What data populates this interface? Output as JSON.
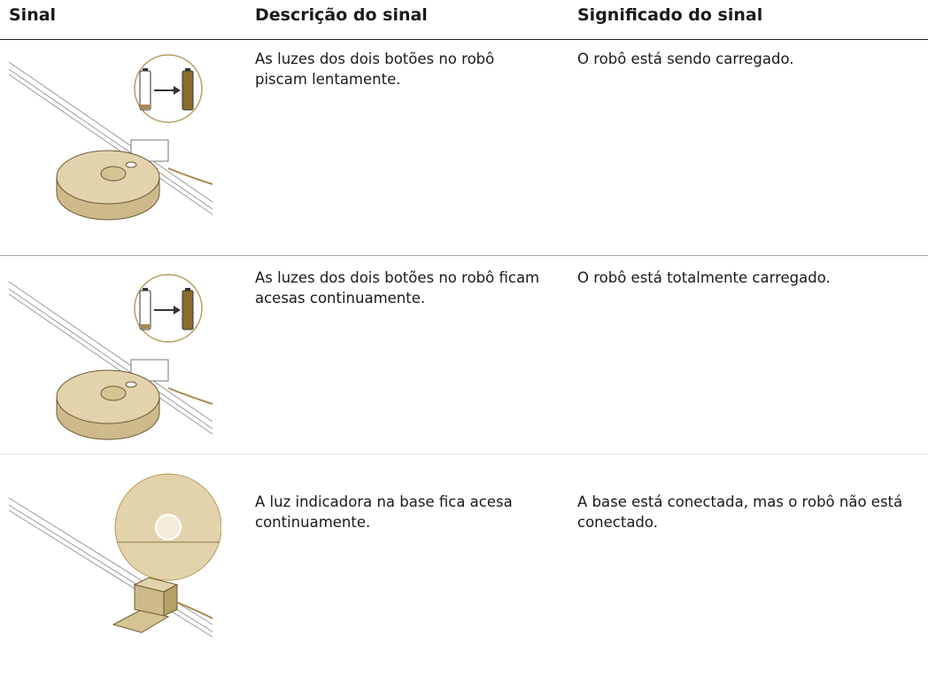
{
  "table": {
    "headers": [
      "Sinal",
      "Descrição do sinal",
      "Significado do sinal"
    ],
    "rows": [
      [
        "As luzes dos dois botões no robô piscam lentamente.",
        "O robô está sendo carregado."
      ],
      [
        "As luzes dos dois botões no robô ficam acesas continuamente.",
        "O robô está totalmente carregado."
      ],
      [
        "A luz indicadora na base fica acesa continuamente.",
        "A base está conectada, mas o robô não está conectado."
      ]
    ]
  }
}
